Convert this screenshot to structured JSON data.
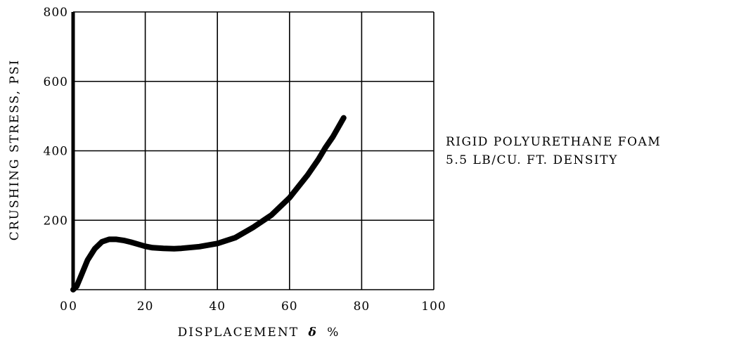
{
  "chart_data": {
    "type": "line",
    "xlabel_prefix": "DISPLACEMENT",
    "xlabel_symbol": "δ",
    "xlabel_suffix": "%",
    "ylabel": "CRUSHING STRESS, PSI",
    "xlim": [
      0,
      100
    ],
    "ylim": [
      0,
      800
    ],
    "x_ticks": [
      0,
      20,
      40,
      60,
      80,
      100
    ],
    "y_ticks": [
      200,
      400,
      600,
      800
    ],
    "grid": true,
    "series": [
      {
        "x": [
          0,
          1,
          2,
          4,
          6,
          8,
          10,
          12,
          14,
          16,
          18,
          20,
          22,
          25,
          28,
          30,
          35,
          40,
          45,
          50,
          55,
          60,
          65,
          68,
          70,
          72,
          75
        ],
        "y": [
          0,
          10,
          35,
          85,
          118,
          138,
          145,
          145,
          142,
          137,
          131,
          125,
          121,
          119,
          118,
          119,
          124,
          133,
          150,
          180,
          215,
          265,
          330,
          375,
          410,
          440,
          495
        ]
      }
    ],
    "annotation": {
      "line1": "RIGID POLYURETHANE FOAM",
      "line2": "5.5 LB/CU. FT. DENSITY"
    }
  }
}
